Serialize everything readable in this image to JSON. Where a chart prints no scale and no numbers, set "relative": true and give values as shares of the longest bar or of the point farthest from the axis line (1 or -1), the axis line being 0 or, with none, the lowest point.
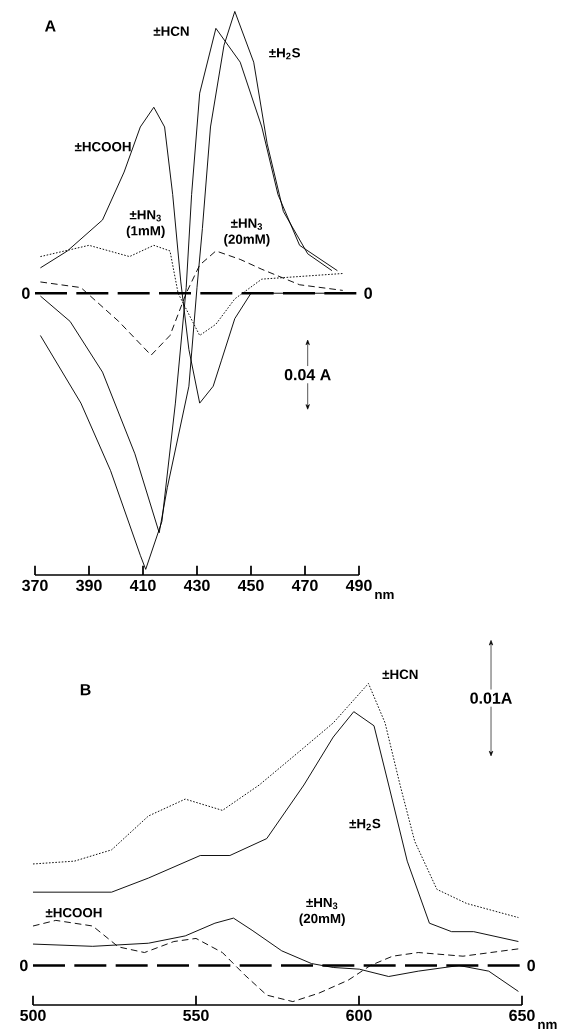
{
  "chart_data": [
    {
      "type": "line",
      "title": "A",
      "xlabel": "nm",
      "relative": true,
      "xlim": [
        370,
        490
      ],
      "xticks": [
        370,
        390,
        410,
        430,
        450,
        470,
        490
      ],
      "annotations": [
        "0.04 A"
      ],
      "ref_lines": [
        {
          "axis": "y",
          "value": 0,
          "label": "0",
          "line_style": "dashed"
        }
      ],
      "series": [
        {
          "name": "±HCOOH",
          "color": "#000000",
          "line_style": "solid",
          "x": [
            372,
            382,
            395,
            403,
            409,
            414,
            418,
            421,
            424,
            427,
            431,
            436,
            439,
            444,
            450,
            466,
            484
          ],
          "values": [
            0.09,
            0.15,
            0.26,
            0.43,
            0.59,
            0.66,
            0.59,
            0.35,
            0.04,
            -0.2,
            -0.39,
            -0.33,
            -0.24,
            -0.09,
            0.0,
            0.0,
            0.0
          ]
        },
        {
          "name": "±HCN",
          "color": "#000000",
          "line_style": "solid",
          "x": [
            372,
            387,
            398,
            409,
            411,
            417,
            422,
            426,
            428,
            431,
            437,
            446,
            454,
            460,
            468,
            482
          ],
          "values": [
            -0.15,
            -0.39,
            -0.63,
            -0.93,
            -0.98,
            -0.81,
            -0.39,
            0.02,
            0.35,
            0.71,
            0.94,
            0.82,
            0.59,
            0.35,
            0.17,
            0.08
          ]
        },
        {
          "name": "±H$_{2}$S",
          "color": "#000000",
          "line_style": "solid",
          "x": [
            372,
            383,
            395,
            407,
            416,
            419,
            427,
            430,
            432,
            435,
            440,
            444,
            451,
            456,
            462,
            471,
            480
          ],
          "values": [
            -0.01,
            -0.1,
            -0.28,
            -0.57,
            -0.85,
            -0.69,
            -0.33,
            0.02,
            0.23,
            0.59,
            0.88,
            1.0,
            0.82,
            0.53,
            0.29,
            0.14,
            0.08
          ]
        },
        {
          "name": "±HN$_{3}$ (1mM)",
          "color": "#000000",
          "line_style": "dotted",
          "x": [
            372,
            390,
            405,
            414,
            420,
            423,
            431,
            437,
            444,
            454,
            484
          ],
          "values": [
            0.13,
            0.17,
            0.13,
            0.17,
            0.15,
            0.0,
            -0.15,
            -0.11,
            -0.02,
            0.05,
            0.07
          ]
        },
        {
          "name": "±HN$_{3}$ (20mM)",
          "color": "#000000",
          "line_style": "dashed",
          "x": [
            372,
            387,
            401,
            413,
            420,
            426,
            431,
            437,
            446,
            454,
            468,
            484
          ],
          "values": [
            0.04,
            0.02,
            -0.1,
            -0.22,
            -0.15,
            0.0,
            0.1,
            0.15,
            0.12,
            0.085,
            0.03,
            0.01
          ]
        }
      ]
    },
    {
      "type": "line",
      "title": "B",
      "xlabel": "nm",
      "relative": true,
      "xlim": [
        500,
        650
      ],
      "xticks": [
        500,
        550,
        600,
        650
      ],
      "annotations": [
        "0.01A"
      ],
      "ref_lines": [
        {
          "axis": "y",
          "value": 0,
          "label": "0",
          "line_style": "dashed"
        }
      ],
      "series": [
        {
          "name": "±HCN",
          "color": "#000000",
          "line_style": "dotted",
          "x": [
            500,
            512.7,
            524.1,
            535.4,
            546.7,
            558.1,
            569.4,
            580.8,
            592.1,
            602.9,
            608,
            612.6,
            617.1,
            623.9,
            633,
            648.9
          ],
          "values": [
            0.36,
            0.37,
            0.41,
            0.53,
            0.59,
            0.55,
            0.64,
            0.75,
            0.86,
            1.0,
            0.86,
            0.64,
            0.44,
            0.27,
            0.22,
            0.17
          ]
        },
        {
          "name": "±H$_{2}$S",
          "color": "#000000",
          "line_style": "solid",
          "x": [
            500,
            524.1,
            535.4,
            551.3,
            560.4,
            571.7,
            583.1,
            592.1,
            598.4,
            604.6,
            609.1,
            614.8,
            621.6,
            628.4,
            635.2,
            648.9
          ],
          "values": [
            0.26,
            0.26,
            0.31,
            0.39,
            0.39,
            0.45,
            0.64,
            0.81,
            0.9,
            0.85,
            0.64,
            0.37,
            0.15,
            0.12,
            0.12,
            0.085
          ]
        },
        {
          "name": "±HCOOH",
          "color": "#000000",
          "line_style": "dashed",
          "x": [
            500,
            507,
            518.3,
            526.2,
            534.2,
            543.2,
            550,
            558.1,
            564.9,
            571.7,
            579.7,
            587.7,
            596.7,
            603.5,
            610.3,
            618.2,
            631.9,
            648.9
          ],
          "values": [
            0.14,
            0.16,
            0.14,
            0.066,
            0.046,
            0.085,
            0.096,
            0.046,
            -0.033,
            -0.105,
            -0.128,
            -0.098,
            -0.052,
            0.0,
            0.033,
            0.046,
            0.033,
            0.059
          ]
        },
        {
          "name": "±HN$_{3}$ (20mM)",
          "color": "#000000",
          "line_style": "solid",
          "x": [
            500,
            518.3,
            535.4,
            546.7,
            555.8,
            561.5,
            567.2,
            576.3,
            585.4,
            592.1,
            600.1,
            609.1,
            618.2,
            630.7,
            639.8,
            648.9
          ],
          "values": [
            0.076,
            0.068,
            0.079,
            0.105,
            0.15,
            0.168,
            0.125,
            0.052,
            0.007,
            -0.007,
            -0.013,
            -0.039,
            -0.02,
            0.0,
            -0.02,
            -0.092
          ]
        }
      ]
    }
  ]
}
